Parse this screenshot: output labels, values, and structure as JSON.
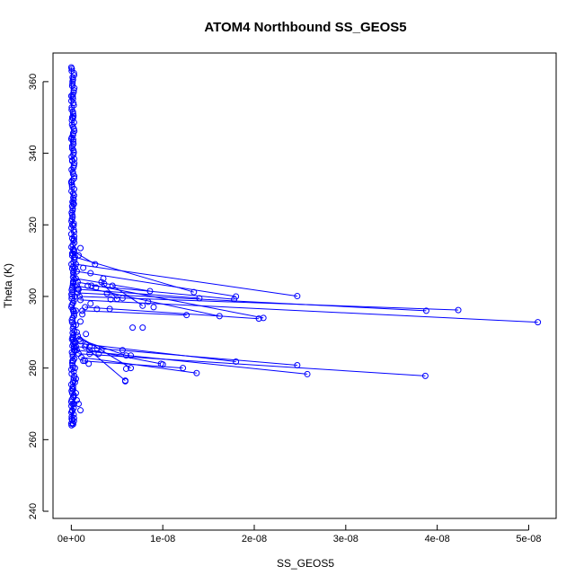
{
  "chart_data": {
    "type": "scatter",
    "title": "ATOM4 Northbound SS_GEOS5",
    "xlabel": "SS_GEOS5",
    "ylabel": "Theta (K)",
    "xlim": [
      -2e-09,
      5.3e-08
    ],
    "ylim": [
      238,
      368
    ],
    "x_ticks": [
      0,
      1e-08,
      2e-08,
      3e-08,
      4e-08,
      5e-08
    ],
    "x_tick_labels": [
      "0e+00",
      "1e-08",
      "2e-08",
      "3e-08",
      "4e-08",
      "5e-08"
    ],
    "y_ticks": [
      240,
      260,
      280,
      300,
      320,
      340,
      360
    ],
    "y_tick_labels": [
      "240",
      "260",
      "280",
      "300",
      "320",
      "340",
      "360"
    ],
    "grid": false,
    "colors": {
      "series": "#0000ff",
      "axis": "#000000"
    },
    "series": [
      {
        "mode": "lines+points",
        "marker": "open-circle",
        "segments": [
          [
            [
              0,
              264.5
            ],
            [
              1e-10,
              268
            ],
            [
              2e-10,
              272
            ],
            [
              4e-10,
              276
            ]
          ],
          [
            [
              1e-10,
              265.5
            ],
            [
              3e-10,
              270
            ],
            [
              5e-10,
              273
            ]
          ],
          [
            [
              2e-10,
              282
            ],
            [
              4e-10,
              285
            ],
            [
              2e-10,
              288
            ],
            [
              5e-10,
              292
            ],
            [
              2e-10,
              296
            ],
            [
              4e-10,
              300
            ],
            [
              2e-10,
              304
            ],
            [
              4e-10,
              308
            ],
            [
              1e-10,
              312
            ],
            [
              3e-10,
              316
            ],
            [
              1e-10,
              320
            ],
            [
              2e-10,
              326
            ],
            [
              0,
              332
            ],
            [
              1e-10,
              338
            ],
            [
              0,
              344
            ],
            [
              1e-10,
              350
            ],
            [
              0,
              356
            ],
            [
              0,
              364
            ]
          ],
          [
            [
              3e-10,
              312.5
            ],
            [
              2.6e-09,
              309
            ]
          ],
          [
            [
              4e-10,
              311
            ],
            [
              1.34e-08,
              301.2
            ]
          ],
          [
            [
              5e-10,
              309
            ],
            [
              2.47e-08,
              300.1
            ]
          ],
          [
            [
              6e-10,
              307
            ],
            [
              1.8e-08,
              300
            ]
          ],
          [
            [
              5e-10,
              305
            ],
            [
              8.6e-09,
              301.5
            ]
          ],
          [
            [
              7e-10,
              304
            ],
            [
              2.1e-08,
              294
            ]
          ],
          [
            [
              6e-10,
              303
            ],
            [
              1.62e-08,
              294.5
            ]
          ],
          [
            [
              8e-10,
              302
            ],
            [
              1.4e-08,
              299.5
            ]
          ],
          [
            [
              7e-10,
              301
            ],
            [
              3.88e-08,
              296
            ]
          ],
          [
            [
              9e-10,
              300
            ],
            [
              4.23e-08,
              296.2
            ]
          ],
          [
            [
              1e-09,
              299
            ],
            [
              5.1e-08,
              292.8
            ]
          ],
          [
            [
              1.5e-09,
              297
            ],
            [
              2.05e-08,
              293.8
            ]
          ],
          [
            [
              2.2e-09,
              303
            ],
            [
              1.78e-08,
              299.2
            ]
          ],
          [
            [
              1.2e-09,
              296
            ],
            [
              1.26e-08,
              294.8
            ]
          ],
          [
            [
              3.3e-09,
              304
            ],
            [
              5e-09,
              299.3
            ]
          ],
          [
            [
              4.5e-09,
              303
            ],
            [
              7.8e-09,
              297.4
            ]
          ],
          [
            [
              4e-10,
              287
            ],
            [
              1.8e-08,
              281.8
            ]
          ],
          [
            [
              5e-10,
              286
            ],
            [
              2.47e-08,
              280.8
            ]
          ],
          [
            [
              6e-10,
              285
            ],
            [
              2.58e-08,
              278.3
            ]
          ],
          [
            [
              8e-10,
              284
            ],
            [
              3.87e-08,
              277.8
            ]
          ],
          [
            [
              1.1e-09,
              283
            ],
            [
              1.37e-08,
              278.6
            ]
          ],
          [
            [
              1.3e-09,
              282
            ],
            [
              1.22e-08,
              280
            ]
          ],
          [
            [
              2e-09,
              285
            ],
            [
              9.8e-09,
              281.2
            ]
          ],
          [
            [
              9e-10,
              288
            ],
            [
              6e-09,
              283.5
            ]
          ],
          [
            [
              1.5e-09,
              286
            ],
            [
              5.9e-09,
              276.5
            ]
          ],
          [
            [
              7e-10,
              289
            ],
            [
              6.5e-09,
              280
            ]
          ]
        ],
        "points": [
          [
            1e-09,
            313.5
          ],
          [
            8e-10,
            311.5
          ],
          [
            1.3e-09,
            308
          ],
          [
            2.1e-09,
            306.5
          ],
          [
            3.5e-09,
            305
          ],
          [
            1.8e-09,
            303
          ],
          [
            3.6e-09,
            303.5
          ],
          [
            2.7e-09,
            302.5
          ],
          [
            7e-10,
            302
          ],
          [
            3.9e-09,
            300.8
          ],
          [
            4.3e-09,
            299.2
          ],
          [
            2.1e-09,
            298
          ],
          [
            5.6e-09,
            299.5
          ],
          [
            8.4e-09,
            298.5
          ],
          [
            2.8e-09,
            296.5
          ],
          [
            4.2e-09,
            296.5
          ],
          [
            9e-09,
            297
          ],
          [
            6.7e-09,
            291.3
          ],
          [
            7.8e-09,
            291.3
          ],
          [
            1.2e-09,
            295
          ],
          [
            1e-09,
            293
          ],
          [
            1.6e-09,
            289.5
          ],
          [
            1e-09,
            287.5
          ],
          [
            1.6e-09,
            286.5
          ],
          [
            2e-09,
            286
          ],
          [
            2.8e-09,
            285.5
          ],
          [
            3.3e-09,
            285
          ],
          [
            5.6e-09,
            285
          ],
          [
            2e-09,
            284
          ],
          [
            3e-09,
            284
          ],
          [
            6.5e-09,
            283.5
          ],
          [
            1.5e-09,
            282
          ],
          [
            1.9e-09,
            281.2
          ],
          [
            6e-09,
            279.8
          ],
          [
            1e-08,
            281
          ],
          [
            5.9e-09,
            276.3
          ],
          [
            3e-10,
            313
          ],
          [
            5e-10,
            296
          ],
          [
            6e-10,
            290
          ],
          [
            3e-10,
            286
          ],
          [
            4e-10,
            280
          ],
          [
            5e-10,
            277
          ],
          [
            2e-10,
            274
          ],
          [
            6e-10,
            271
          ],
          [
            8e-10,
            270
          ],
          [
            1e-09,
            268.2
          ],
          [
            3e-10,
            266
          ],
          [
            2e-10,
            264.3
          ]
        ]
      }
    ]
  }
}
